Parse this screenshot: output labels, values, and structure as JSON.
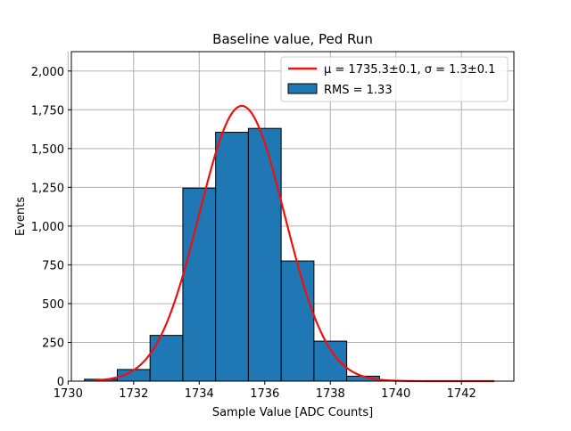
{
  "chart_data": {
    "type": "bar",
    "title": "Baseline value, Ped Run",
    "xlabel": "Sample Value [ADC Counts]",
    "ylabel": "Events",
    "xlim": [
      1730.1,
      1743.6
    ],
    "ylim": [
      0,
      2125
    ],
    "grid": true,
    "legend_position": "top-right",
    "x_ticks": [
      1730,
      1732,
      1734,
      1736,
      1738,
      1740,
      1742
    ],
    "y_ticks": [
      0,
      250,
      500,
      750,
      1000,
      1250,
      1500,
      1750,
      2000
    ],
    "bins": [
      {
        "left": 1730.5,
        "right": 1731.5,
        "count": 12
      },
      {
        "left": 1731.5,
        "right": 1732.5,
        "count": 75
      },
      {
        "left": 1732.5,
        "right": 1733.5,
        "count": 295
      },
      {
        "left": 1733.5,
        "right": 1734.5,
        "count": 1245
      },
      {
        "left": 1734.5,
        "right": 1735.5,
        "count": 1605
      },
      {
        "left": 1735.5,
        "right": 1736.5,
        "count": 1630
      },
      {
        "left": 1736.5,
        "right": 1737.5,
        "count": 775
      },
      {
        "left": 1737.5,
        "right": 1738.5,
        "count": 258
      },
      {
        "left": 1738.5,
        "right": 1739.5,
        "count": 32
      }
    ],
    "fit": {
      "mu": 1735.3,
      "sigma": 1.3,
      "amplitude": 1775,
      "x_range": [
        1730.8,
        1743.0
      ]
    },
    "series": [
      {
        "name": "μ = 1735.3±0.1, σ = 1.3±0.1",
        "kind": "line",
        "color": "#ee1111"
      },
      {
        "name": "RMS = 1.33",
        "kind": "histogram",
        "color": "#1f77b4"
      }
    ]
  }
}
